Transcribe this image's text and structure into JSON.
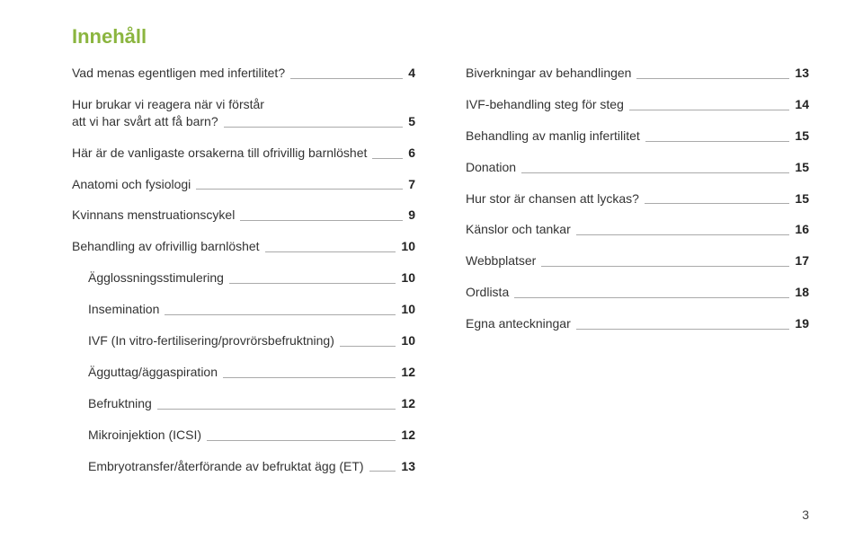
{
  "title": "Innehåll",
  "title_color": "#8bb53f",
  "text_color": "#333333",
  "leader_color": "#aaaaaa",
  "bold_color": "#222222",
  "page_number": "3",
  "left": [
    {
      "text": [
        "Vad menas egentligen med infertilitet?"
      ],
      "page": "4",
      "indent": false
    },
    {
      "text": [
        "Hur brukar vi reagera när vi förstår",
        "att vi har svårt att få barn?"
      ],
      "page": "5",
      "indent": false
    },
    {
      "text": [
        "Här är de vanligaste orsakerna till ofrivillig barnlöshet"
      ],
      "page": "6",
      "indent": false
    },
    {
      "text": [
        "Anatomi och fysiologi"
      ],
      "page": "7",
      "indent": false
    },
    {
      "text": [
        "Kvinnans menstruationscykel"
      ],
      "page": "9",
      "indent": false
    },
    {
      "text": [
        "Behandling av ofrivillig barnlöshet"
      ],
      "page": "10",
      "indent": false
    },
    {
      "text": [
        "Ägglossningsstimulering"
      ],
      "page": "10",
      "indent": true
    },
    {
      "text": [
        "Insemination"
      ],
      "page": "10",
      "indent": true
    },
    {
      "text": [
        "IVF (In vitro-fertilisering/provrörsbefruktning)"
      ],
      "page": "10",
      "indent": true
    },
    {
      "text": [
        "Ägguttag/äggaspiration"
      ],
      "page": "12",
      "indent": true
    },
    {
      "text": [
        "Befruktning"
      ],
      "page": "12",
      "indent": true
    },
    {
      "text": [
        "Mikroinjektion (ICSI)"
      ],
      "page": "12",
      "indent": true
    },
    {
      "text": [
        "Embryotransfer/återförande av befruktat ägg (ET)"
      ],
      "page": "13",
      "indent": true
    }
  ],
  "right": [
    {
      "text": [
        "Biverkningar av behandlingen"
      ],
      "page": "13",
      "indent": false
    },
    {
      "text": [
        "IVF-behandling steg för steg"
      ],
      "page": "14",
      "indent": false
    },
    {
      "text": [
        "Behandling av manlig infertilitet"
      ],
      "page": "15",
      "indent": false
    },
    {
      "text": [
        "Donation"
      ],
      "page": "15",
      "indent": false
    },
    {
      "text": [
        "Hur stor är chansen att lyckas?"
      ],
      "page": "15",
      "indent": false
    },
    {
      "text": [
        "Känslor och tankar"
      ],
      "page": "16",
      "indent": false
    },
    {
      "text": [
        "Webbplatser"
      ],
      "page": "17",
      "indent": false
    },
    {
      "text": [
        "Ordlista"
      ],
      "page": "18",
      "indent": false
    },
    {
      "text": [
        "Egna anteckningar"
      ],
      "page": "19",
      "indent": false
    }
  ]
}
